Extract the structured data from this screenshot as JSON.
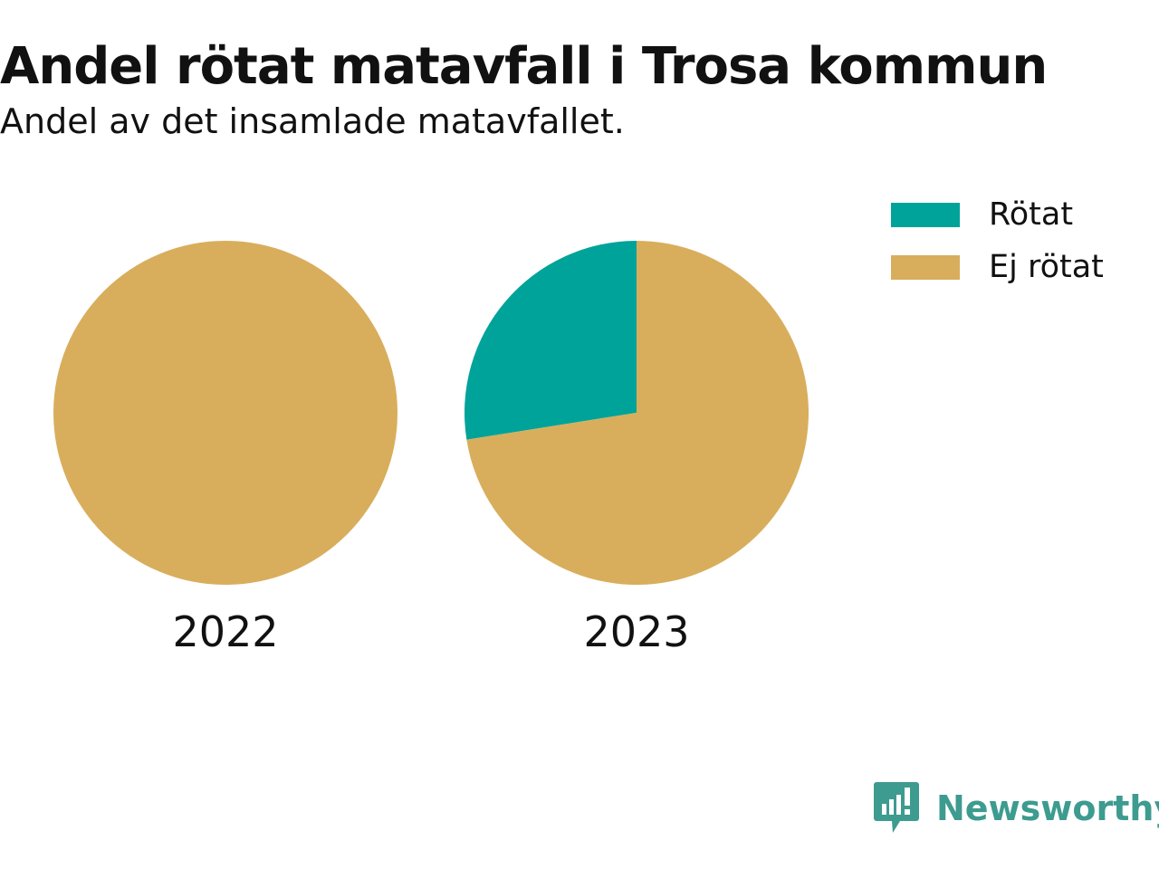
{
  "title": "Andel rötat matavfall i Trosa kommun",
  "subtitle": "Andel av det insamlade matavfallet.",
  "legend": {
    "items": [
      {
        "label": "Rötat",
        "color": "#00a39a"
      },
      {
        "label": "Ej rötat",
        "color": "#d8ae5c"
      }
    ],
    "placement": "top-right"
  },
  "brand": {
    "name": "Newsworthy",
    "color": "#3d9b8f"
  },
  "chart_data": {
    "type": "pie",
    "categories": [
      "Rötat",
      "Ej rötat"
    ],
    "colors": [
      "#00a39a",
      "#d8ae5c"
    ],
    "pies": [
      {
        "label": "2022",
        "values": [
          0,
          100
        ]
      },
      {
        "label": "2023",
        "values": [
          27.5,
          72.5
        ]
      }
    ]
  }
}
